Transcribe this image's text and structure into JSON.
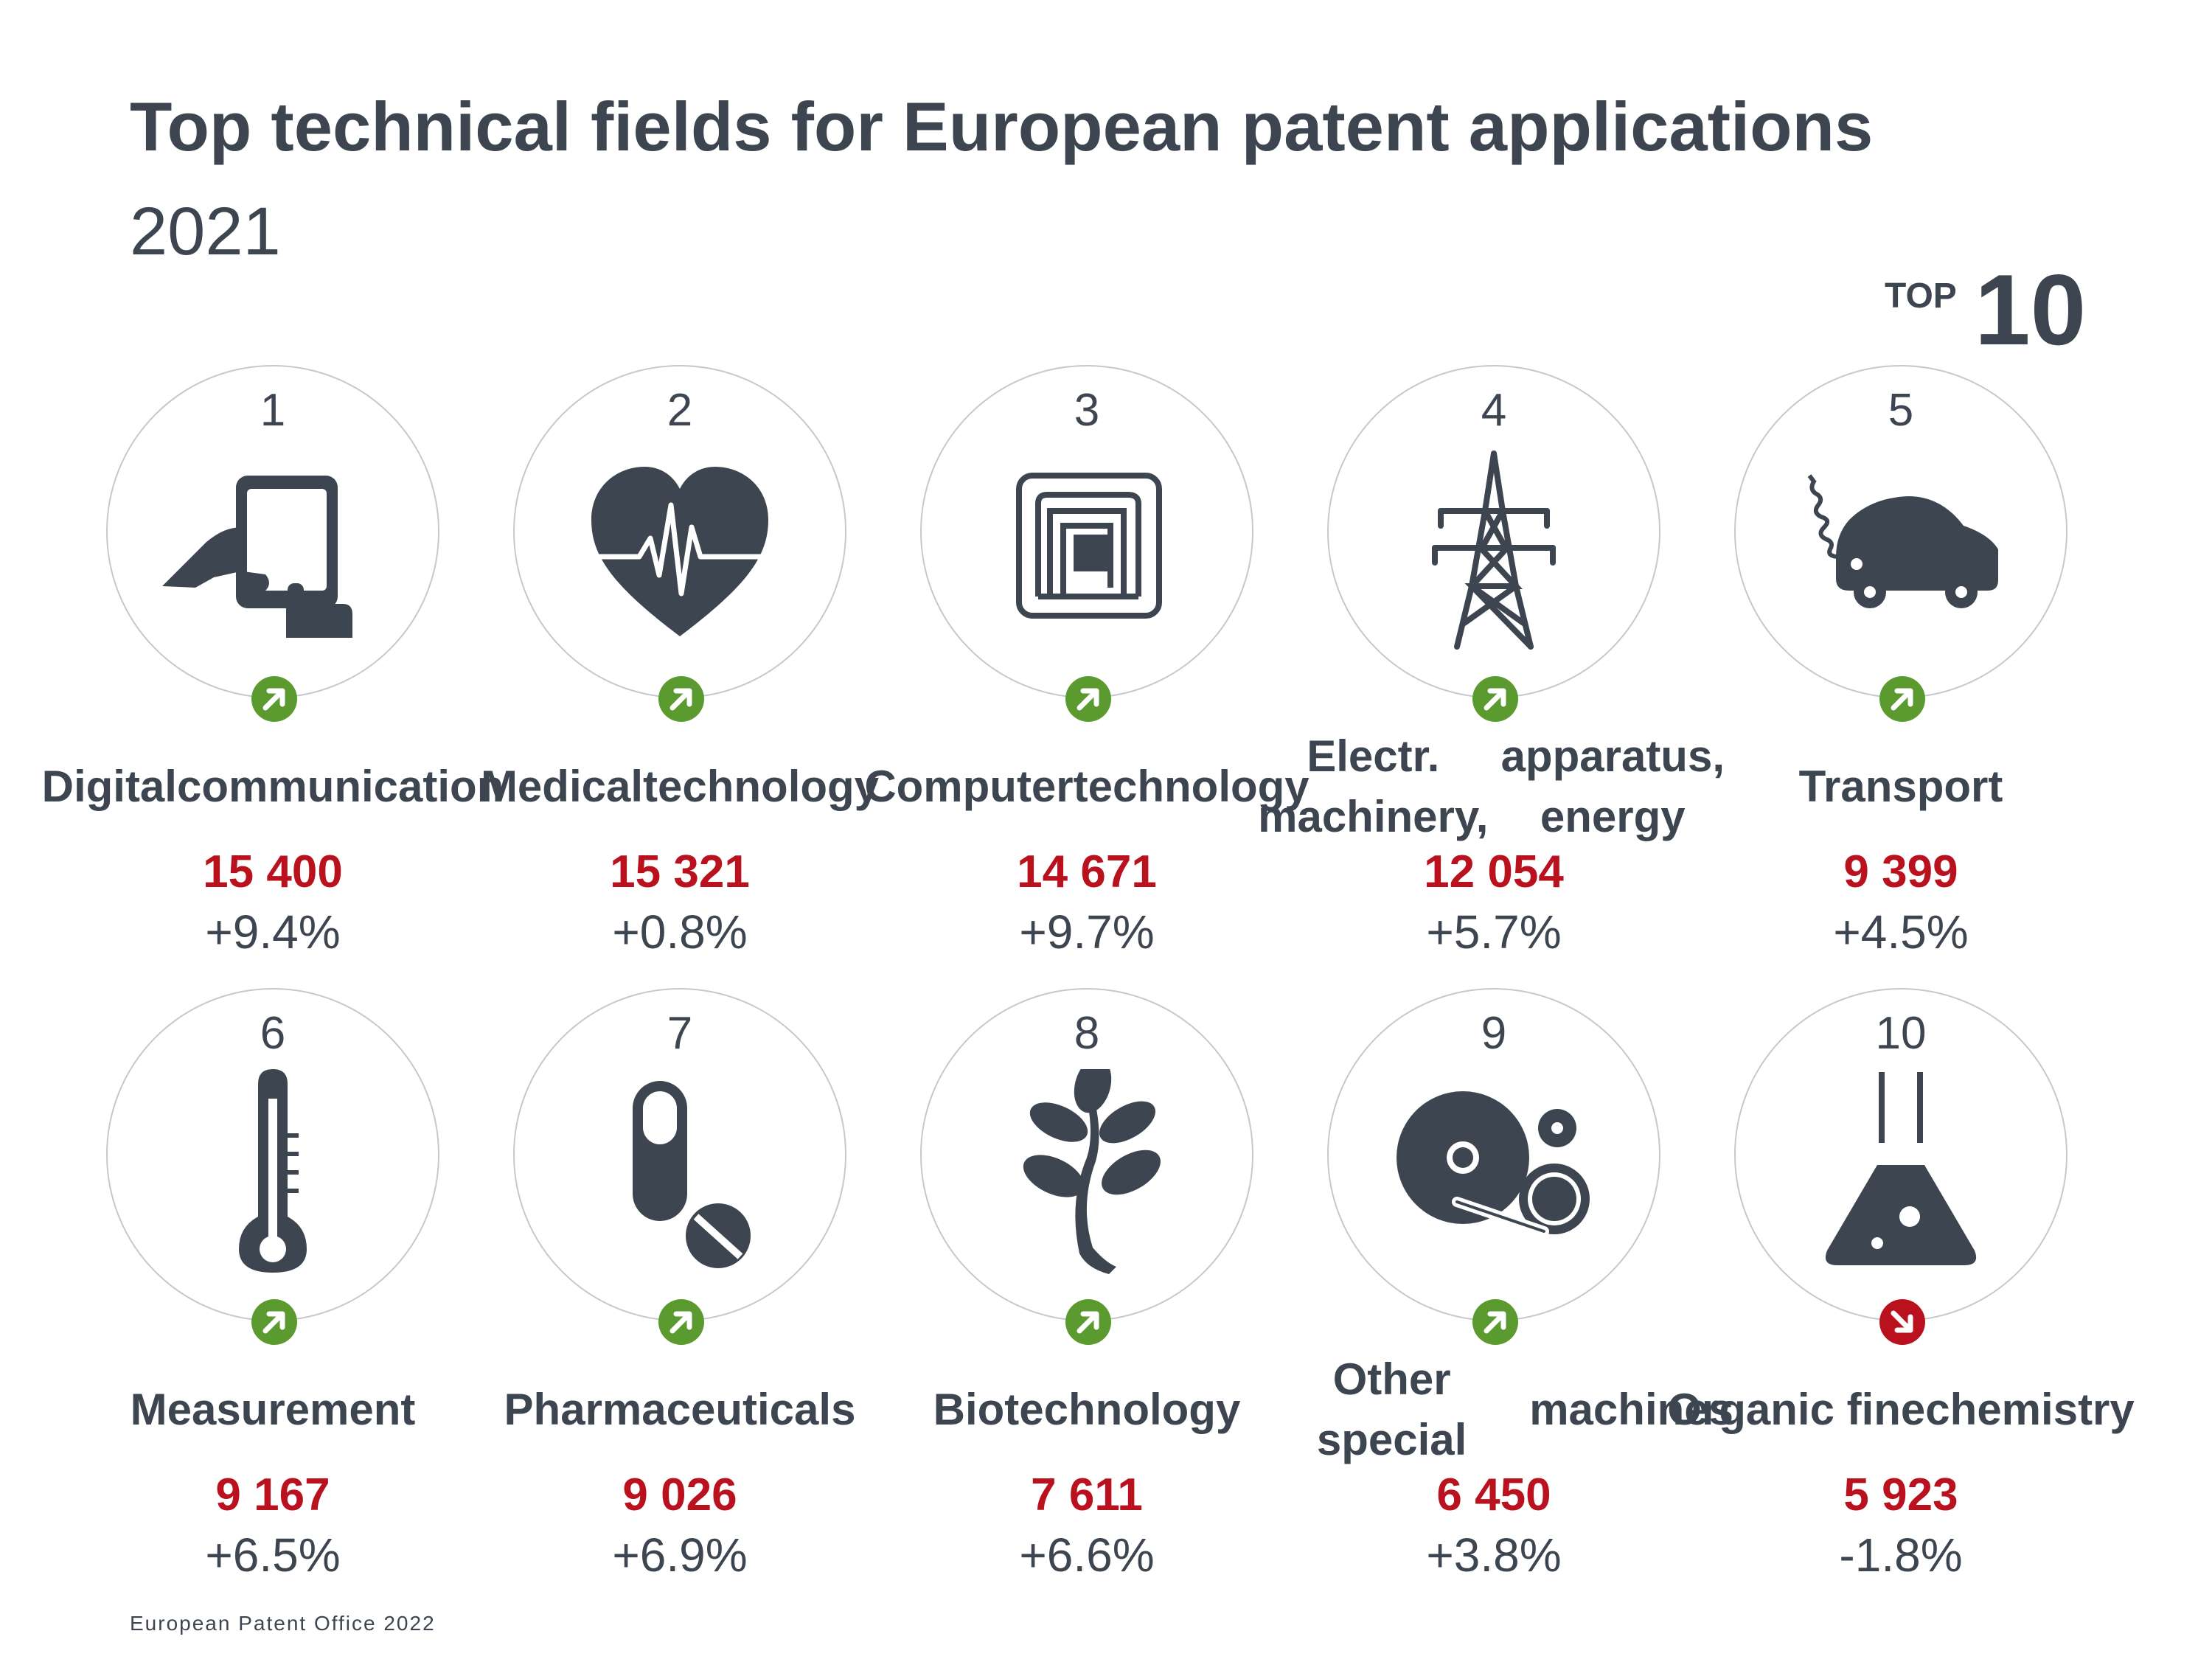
{
  "title": "Top technical fields for European patent applications",
  "subtitle": "2021",
  "badge": {
    "small": "TOP",
    "big": "10"
  },
  "source": "European Patent Office 2022",
  "colors": {
    "up": "#5a9a2e",
    "down": "#b9111d",
    "text": "#3d4650",
    "value": "#b9111d",
    "circle": "#c8c8c8"
  },
  "fields": [
    {
      "rank": "1",
      "label_lines": [
        "Digital",
        "communication"
      ],
      "value": "15 400",
      "change": "+9.4%",
      "trend": "up",
      "icon": "tablet-hand-icon"
    },
    {
      "rank": "2",
      "label_lines": [
        "Medical",
        "technology"
      ],
      "value": "15 321",
      "change": "+0.8%",
      "trend": "up",
      "icon": "heart-pulse-icon"
    },
    {
      "rank": "3",
      "label_lines": [
        "Computer",
        "technology"
      ],
      "value": "14 671",
      "change": "+9.7%",
      "trend": "up",
      "icon": "chip-icon"
    },
    {
      "rank": "4",
      "label_lines": [
        "Electr. machinery,",
        "apparatus, energy"
      ],
      "value": "12 054",
      "change": "+5.7%",
      "trend": "up",
      "icon": "power-pylon-icon"
    },
    {
      "rank": "5",
      "label_lines": [
        "Transport"
      ],
      "value": "9 399",
      "change": "+4.5%",
      "trend": "up",
      "icon": "electric-car-icon"
    },
    {
      "rank": "6",
      "label_lines": [
        "Measurement"
      ],
      "value": "9 167",
      "change": "+6.5%",
      "trend": "up",
      "icon": "thermometer-icon"
    },
    {
      "rank": "7",
      "label_lines": [
        "Pharmaceuticals"
      ],
      "value": "9 026",
      "change": "+6.9%",
      "trend": "up",
      "icon": "pills-icon"
    },
    {
      "rank": "8",
      "label_lines": [
        "Biotechnology"
      ],
      "value": "7 611",
      "change": "+6.6%",
      "trend": "up",
      "icon": "plant-icon"
    },
    {
      "rank": "9",
      "label_lines": [
        "Other special",
        "machines"
      ],
      "value": "6 450",
      "change": "+3.8%",
      "trend": "up",
      "icon": "machine-gears-icon"
    },
    {
      "rank": "10",
      "label_lines": [
        "Organic fine",
        "chemistry"
      ],
      "value": "5 923",
      "change": "-1.8%",
      "trend": "down",
      "icon": "flask-icon"
    }
  ]
}
